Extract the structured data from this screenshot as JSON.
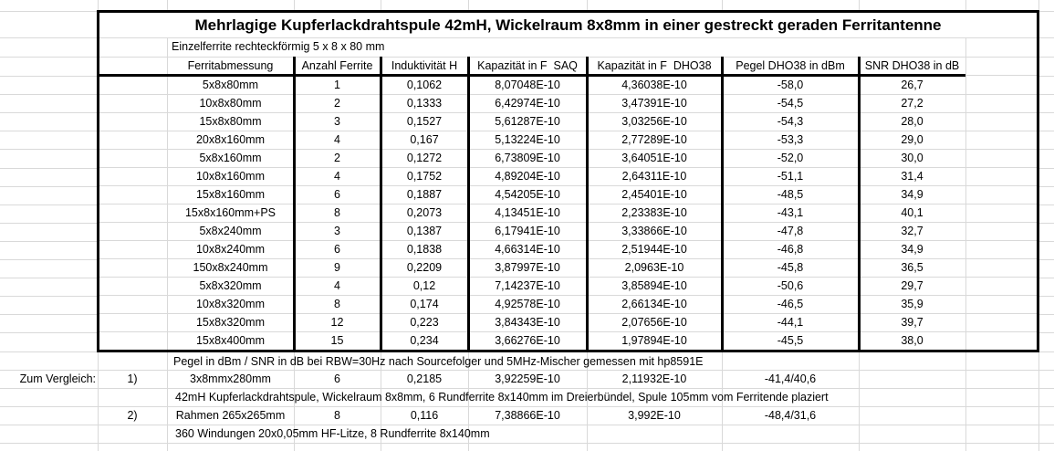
{
  "table": {
    "title": "Mehrlagige Kupferlackdrahtspule 42mH, Wickelraum 8x8mm in einer gestreckt geraden Ferritantenne",
    "subtitle": "Einzelferrite rechteckförmig 5 x 8 x 80 mm",
    "columns": [
      "Ferritabmessung",
      "Anzahl Ferrite",
      "Induktivität H",
      "Kapazität in F  SAQ",
      "Kapazität in F  DHO38",
      "Pegel DHO38 in dBm",
      "SNR DHO38 in dB"
    ],
    "rows": [
      [
        "5x8x80mm",
        "1",
        "0,1062",
        "8,07048E-10",
        "4,36038E-10",
        "-58,0",
        "26,7"
      ],
      [
        "10x8x80mm",
        "2",
        "0,1333",
        "6,42974E-10",
        "3,47391E-10",
        "-54,5",
        "27,2"
      ],
      [
        "15x8x80mm",
        "3",
        "0,1527",
        "5,61287E-10",
        "3,03256E-10",
        "-54,3",
        "28,0"
      ],
      [
        "20x8x160mm",
        "4",
        "0,167",
        "5,13224E-10",
        "2,77289E-10",
        "-53,3",
        "29,0"
      ],
      [
        "5x8x160mm",
        "2",
        "0,1272",
        "6,73809E-10",
        "3,64051E-10",
        "-52,0",
        "30,0"
      ],
      [
        "10x8x160mm",
        "4",
        "0,1752",
        "4,89204E-10",
        "2,64311E-10",
        "-51,1",
        "31,4"
      ],
      [
        "15x8x160mm",
        "6",
        "0,1887",
        "4,54205E-10",
        "2,45401E-10",
        "-48,5",
        "34,9"
      ],
      [
        "15x8x160mm+PS",
        "8",
        "0,2073",
        "4,13451E-10",
        "2,23383E-10",
        "-43,1",
        "40,1"
      ],
      [
        "5x8x240mm",
        "3",
        "0,1387",
        "6,17941E-10",
        "3,33866E-10",
        "-47,8",
        "32,7"
      ],
      [
        "10x8x240mm",
        "6",
        "0,1838",
        "4,66314E-10",
        "2,51944E-10",
        "-46,8",
        "34,9"
      ],
      [
        "150x8x240mm",
        "9",
        "0,2209",
        "3,87997E-10",
        "2,0963E-10",
        "-45,8",
        "36,5"
      ],
      [
        "5x8x320mm",
        "4",
        "0,12",
        "7,14237E-10",
        "3,85894E-10",
        "-50,6",
        "29,7"
      ],
      [
        "10x8x320mm",
        "8",
        "0,174",
        "4,92578E-10",
        "2,66134E-10",
        "-46,5",
        "35,9"
      ],
      [
        "15x8x320mm",
        "12",
        "0,223",
        "3,84343E-10",
        "2,07656E-10",
        "-44,1",
        "39,7"
      ],
      [
        "15x8x400mm",
        "15",
        "0,234",
        "3,66276E-10",
        "1,97894E-10",
        "-45,5",
        "38,0"
      ]
    ]
  },
  "footer": {
    "note": "Pegel in dBm / SNR in dB bei RBW=30Hz nach Sourcefolger und 5MHz-Mischer gemessen mit hp8591E",
    "compare_label": "Zum Vergleich:",
    "comparisons": [
      {
        "index": "1)",
        "cells": [
          "3x8mmx280mm",
          "6",
          "0,2185",
          "3,92259E-10",
          "2,11932E-10",
          "-41,4/40,6"
        ],
        "desc": "42mH Kupferlackdrahtspule, Wickelraum 8x8mm, 6 Rundferrite 8x140mm im Dreierbündel, Spule 105mm vom Ferritende plaziert"
      },
      {
        "index": "2)",
        "cells": [
          "Rahmen 265x265mm",
          "8",
          "0,116",
          "7,38866E-10",
          "3,992E-10",
          "-48,4/31,6"
        ],
        "desc": "360 Windungen 20x0,05mm HF-Litze, 8 Rundferrite 8x140mm"
      }
    ]
  },
  "colors": {
    "grid": "#d9d9d9",
    "border": "#000000",
    "text": "#000000",
    "background": "#ffffff"
  }
}
